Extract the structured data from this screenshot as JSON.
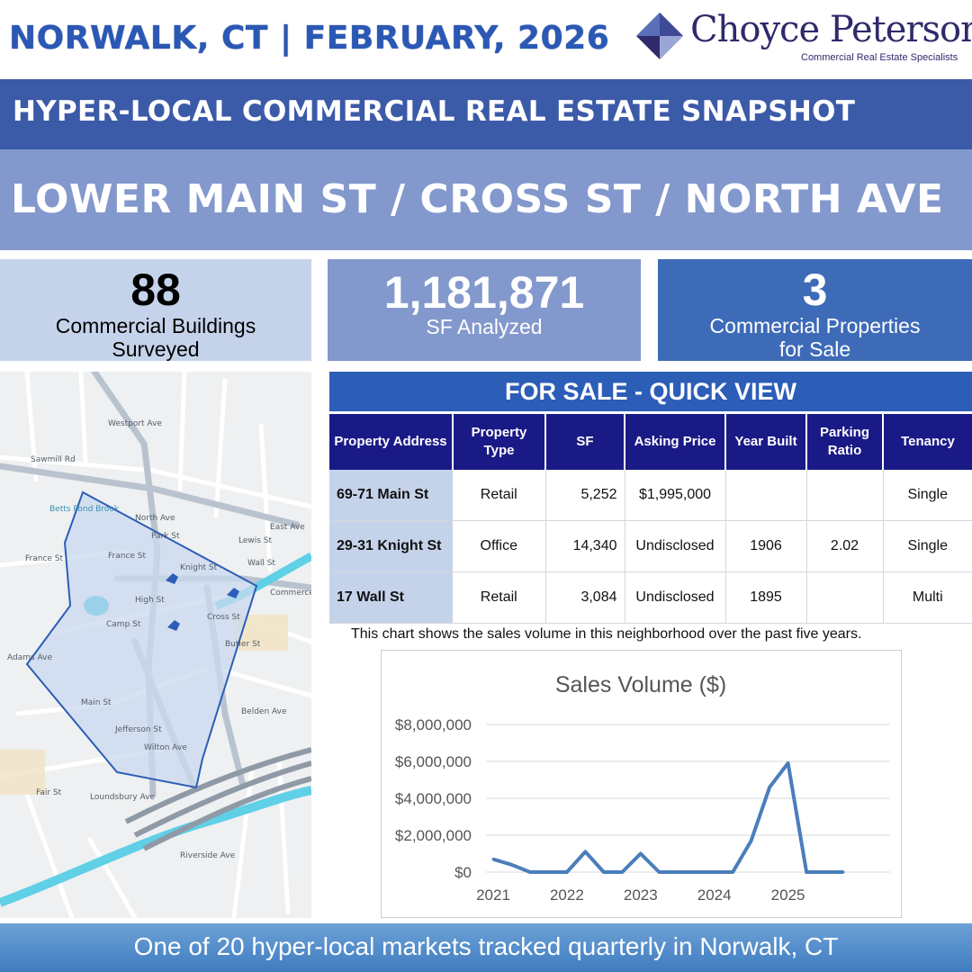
{
  "header": {
    "title": "NORWALK, CT | FEBRUARY, 2026",
    "logo_name": "Choyce Peterson",
    "logo_tagline": "Commercial Real Estate Specialists"
  },
  "banner": {
    "subtitle": "HYPER-LOCAL COMMERCIAL REAL ESTATE SNAPSHOT",
    "area": "LOWER MAIN ST / CROSS ST / NORTH AVE"
  },
  "stats": [
    {
      "value": "88",
      "label_line1": "Commercial Buildings",
      "label_line2": "Surveyed"
    },
    {
      "value": "1,181,871",
      "label_line1": "SF Analyzed",
      "label_line2": ""
    },
    {
      "value": "3",
      "label_line1": "Commercial Properties",
      "label_line2": "for Sale"
    }
  ],
  "map": {
    "streets": [
      "Wall St",
      "Main St",
      "Cross St",
      "North Ave",
      "Knight St",
      "High St",
      "Camp St",
      "France St",
      "Park St",
      "East Ave",
      "Sawmill Rd",
      "Jefferson St",
      "Wilton Ave",
      "Fair St",
      "Riverside Ave",
      "Belden Ave",
      "Butler St",
      "Westport Ave",
      "Lewis St",
      "Commerce St",
      "Adams Ave",
      "Loundsbury Ave"
    ],
    "water": "Betts Pond Brook",
    "colors": {
      "area_fill": "#c9d9ef",
      "area_stroke": "#2c5db7",
      "road": "#b9c3cf",
      "river": "#5fd0e6",
      "highway": "#8f9aa6"
    }
  },
  "quick_view": {
    "title": "FOR SALE - QUICK VIEW",
    "columns": [
      "Property Address",
      "Property Type",
      "SF",
      "Asking Price",
      "Year Built",
      "Parking Ratio",
      "Tenancy"
    ],
    "rows": [
      {
        "address": "69-71 Main St",
        "type": "Retail",
        "sf": "5,252",
        "price": "$1,995,000",
        "year": "",
        "parking": "",
        "tenancy": "Single"
      },
      {
        "address": "29-31 Knight St",
        "type": "Office",
        "sf": "14,340",
        "price": "Undisclosed",
        "year": "1906",
        "parking": "2.02",
        "tenancy": "Single"
      },
      {
        "address": "17 Wall St",
        "type": "Retail",
        "sf": "3,084",
        "price": "Undisclosed",
        "year": "1895",
        "parking": "",
        "tenancy": "Multi"
      }
    ]
  },
  "chart_caption": "This chart shows the sales volume in this neighborhood over the past five years.",
  "chart_data": {
    "type": "line",
    "title": "Sales Volume ($)",
    "xlabel": "",
    "ylabel": "",
    "x": [
      2021.0,
      2021.25,
      2021.5,
      2021.75,
      2022.0,
      2022.25,
      2022.5,
      2022.75,
      2023.0,
      2023.25,
      2023.5,
      2023.75,
      2024.0,
      2024.25,
      2024.5,
      2024.75,
      2025.0,
      2025.25,
      2025.5,
      2025.75
    ],
    "values": [
      700000,
      400000,
      0,
      0,
      0,
      1100000,
      0,
      0,
      1000000,
      0,
      0,
      0,
      0,
      0,
      1700000,
      4600000,
      5900000,
      0,
      0,
      0
    ],
    "x_ticks": [
      "2021",
      "2022",
      "2023",
      "2024",
      "2025"
    ],
    "y_ticks": [
      "$0",
      "$2,000,000",
      "$4,000,000",
      "$6,000,000",
      "$8,000,000"
    ],
    "ylim": [
      0,
      8000000
    ],
    "grid": true,
    "color": "#4a7ebb"
  },
  "footer": {
    "text": "One of 20 hyper-local markets tracked quarterly in Norwalk, CT"
  },
  "colors": {
    "dark_blue": "#3b5aa8",
    "mid_blue": "#8398cc",
    "light_blue": "#c5d3ea",
    "navy": "#1a1a86",
    "accent": "#2c5db7"
  }
}
